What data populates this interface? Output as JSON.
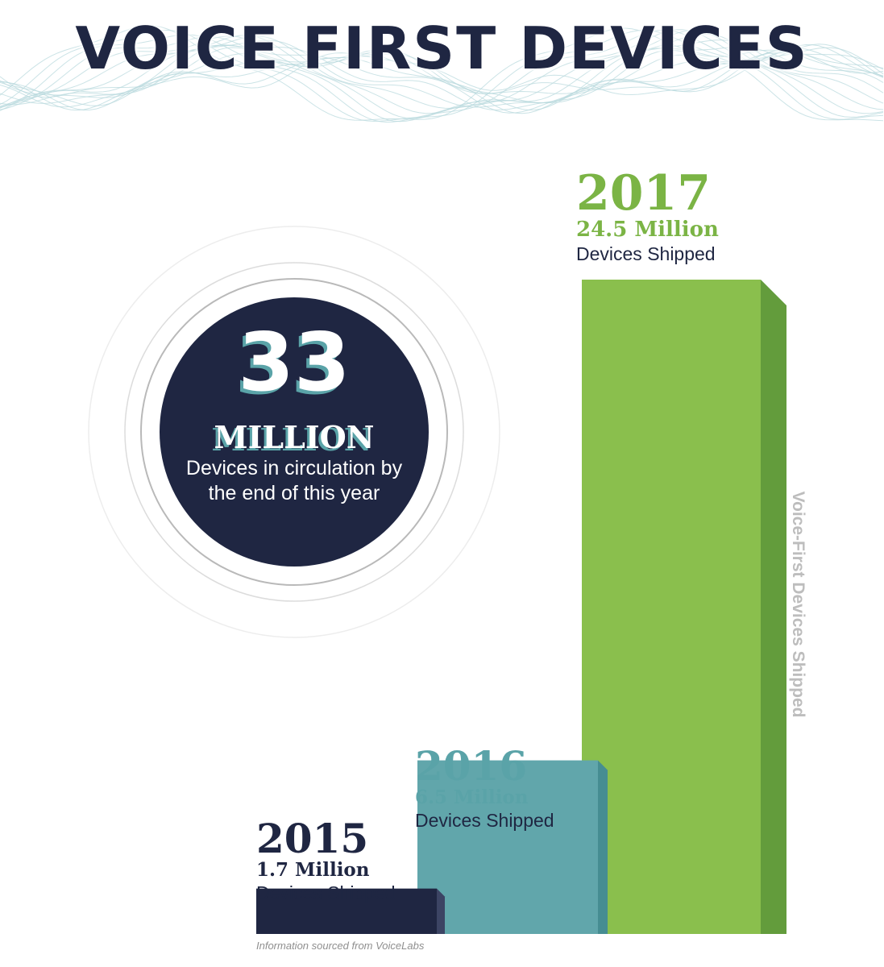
{
  "title": "VOICE FIRST DEVICES",
  "circle": {
    "number": "33",
    "unit": "MILLION",
    "description": "Devices in circulation by the end of this year"
  },
  "chart_data": {
    "type": "bar",
    "title": "VOICE FIRST DEVICES",
    "categories": [
      "2015",
      "2016",
      "2017"
    ],
    "values": [
      1.7,
      6.5,
      24.5
    ],
    "value_labels": [
      "1.7 Million",
      "6.5 Million",
      "24.5 Million"
    ],
    "sublabel": "Devices Shipped",
    "ylabel": "Voice-First Devices Shipped",
    "unit": "Million",
    "grid": false,
    "colors": [
      "#1f2642",
      "#61a6ab",
      "#8abf4d"
    ],
    "side_colors": [
      "#3c4464",
      "#468d92",
      "#639c3c"
    ],
    "year_colors": [
      "#1f2642",
      "#5aa3a8",
      "#7bb445"
    ],
    "ylim": [
      0,
      24.5
    ]
  },
  "source": "Information sourced from VoiceLabs",
  "colors": {
    "navy": "#1f2642",
    "teal": "#61a6ab",
    "green": "#8abf4d",
    "wave": "#b9dadd"
  }
}
